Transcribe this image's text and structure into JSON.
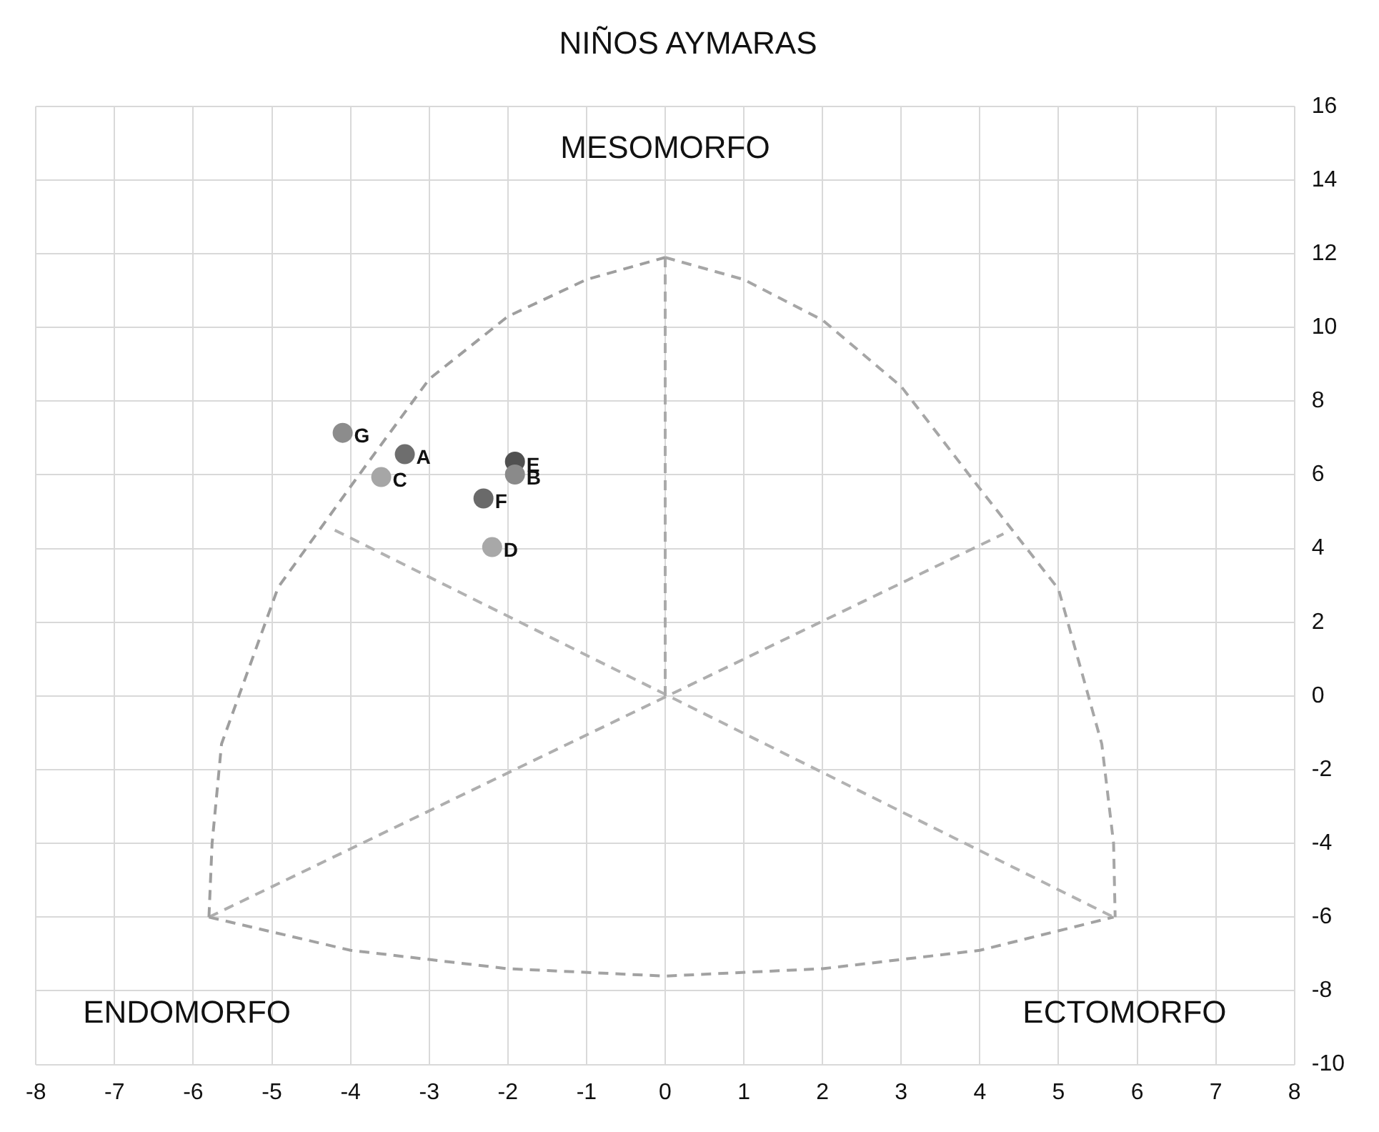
{
  "chart_data": {
    "type": "scatter",
    "title": "NIÑOS AYMARAS",
    "xlim": [
      -8,
      8
    ],
    "xticks": [
      -8,
      -7,
      -6,
      -5,
      -4,
      -3,
      -2,
      -1,
      0,
      1,
      2,
      3,
      4,
      5,
      6,
      7,
      8
    ],
    "ylim": [
      -10,
      16
    ],
    "yticks": [
      -10,
      -8,
      -6,
      -4,
      -2,
      0,
      2,
      4,
      6,
      8,
      10,
      12,
      14,
      16
    ],
    "grid": true,
    "annotations": [
      "MESOMORFO",
      "ENDOMORFO",
      "ECTOMORFO"
    ],
    "series": [
      {
        "type": "line",
        "color": "#9e9e9e",
        "line_style": "dashed",
        "marker": "none",
        "x": [
          -5.8,
          -5.76,
          -5.64,
          -4.92,
          -3.94,
          -3,
          -2,
          -1,
          0
        ],
        "values": [
          -6,
          -4.0,
          -1.3,
          2.95,
          5.86,
          8.6,
          10.3,
          11.3,
          11.9
        ]
      },
      {
        "type": "line",
        "color": "#a2a2a2",
        "line_style": "dashed",
        "marker": "none",
        "x": [
          -5.8,
          -4,
          -2,
          0,
          2,
          4,
          5.7
        ],
        "values": [
          -6,
          -6.9,
          -7.4,
          -7.6,
          -7.4,
          -6.9,
          -6
        ]
      },
      {
        "type": "line",
        "color": "#a6a6a6",
        "line_style": "dashed",
        "marker": "none",
        "x": [
          0,
          1,
          2,
          3,
          3.9,
          5.0,
          5.55,
          5.7,
          5.72
        ],
        "values": [
          11.9,
          11.3,
          10.2,
          8.4,
          5.9,
          2.9,
          -1.3,
          -4.0,
          -6
        ]
      },
      {
        "type": "line",
        "color": "#aaaaaa",
        "line_style": "dashed",
        "marker": "none",
        "x": [
          0,
          0
        ],
        "values": [
          0,
          11.9
        ]
      },
      {
        "type": "line",
        "color": "#aeaeae",
        "line_style": "dashed",
        "marker": "none",
        "x": [
          -5.8,
          4.3
        ],
        "values": [
          -6,
          4.4
        ]
      },
      {
        "type": "line",
        "color": "#b2b2b2",
        "line_style": "dashed",
        "marker": "none",
        "x": [
          -4.2,
          5.7
        ],
        "values": [
          4.5,
          -6
        ]
      },
      {
        "type": "scatter",
        "name": "G",
        "color": "#8c8c8c",
        "marker": "circle",
        "x": [
          -4.1
        ],
        "values": [
          7.14
        ]
      },
      {
        "type": "scatter",
        "name": "A",
        "color": "#6e6e6e",
        "marker": "circle",
        "x": [
          -3.31
        ],
        "values": [
          6.56
        ]
      },
      {
        "type": "scatter",
        "name": "C",
        "color": "#a6a6a6",
        "marker": "circle",
        "x": [
          -3.61
        ],
        "values": [
          5.94
        ]
      },
      {
        "type": "scatter",
        "name": "B",
        "color": "#8a8a8a",
        "marker": "circle",
        "x": [
          -1.91
        ],
        "values": [
          6.01
        ]
      },
      {
        "type": "scatter",
        "name": "E",
        "color": "#505050",
        "marker": "circle",
        "x": [
          -1.91
        ],
        "values": [
          6.36
        ]
      },
      {
        "type": "scatter",
        "name": "F",
        "color": "#6a6a6a",
        "marker": "circle",
        "x": [
          -2.31
        ],
        "values": [
          5.36
        ]
      },
      {
        "type": "scatter",
        "name": "D",
        "color": "#a8a8a8",
        "marker": "circle",
        "x": [
          -2.2
        ],
        "values": [
          4.04
        ]
      }
    ]
  }
}
